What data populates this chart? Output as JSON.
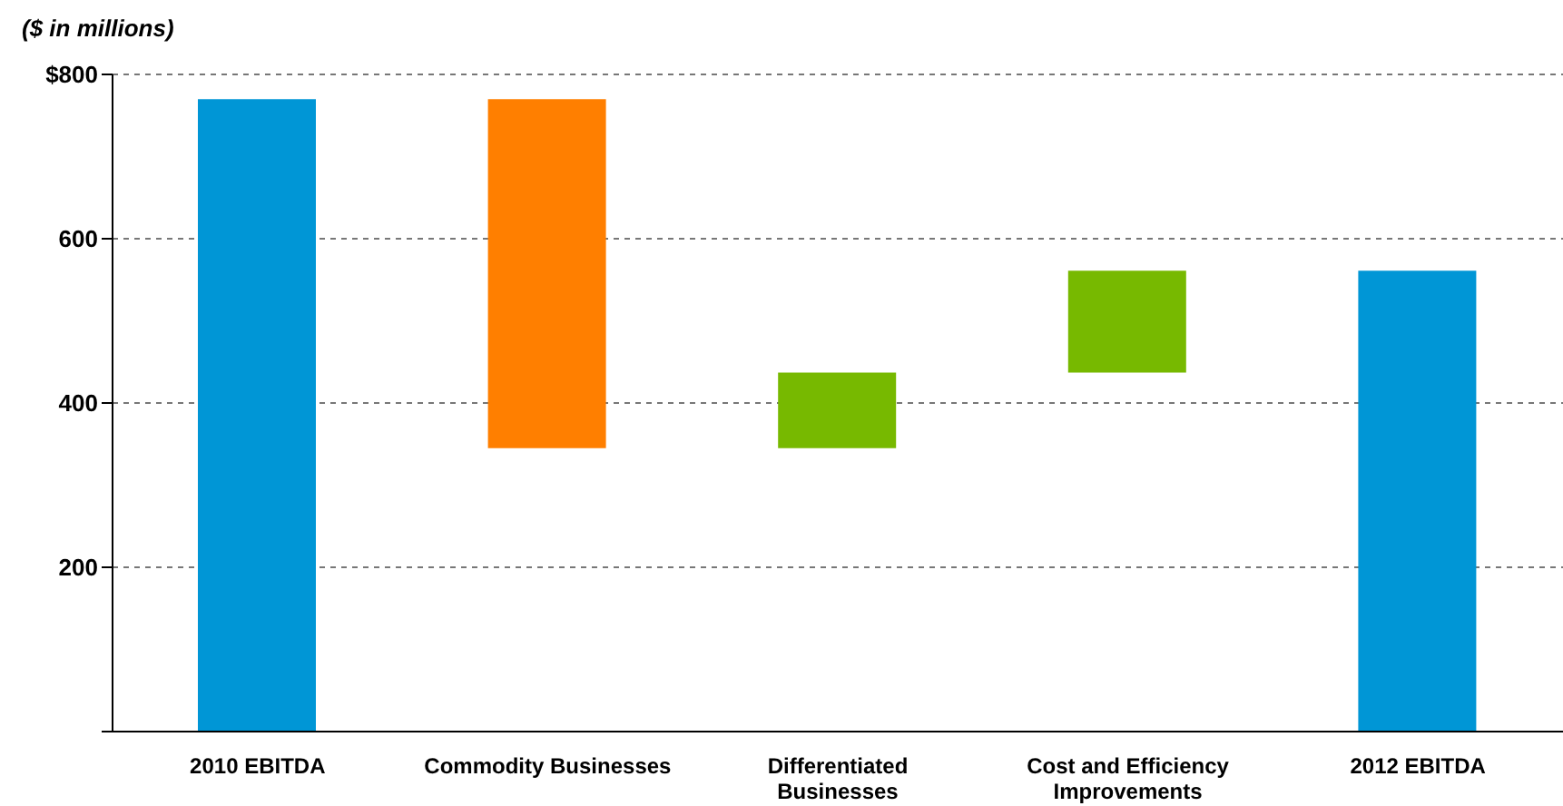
{
  "chart_data": {
    "type": "bar",
    "ylabel": "($ in millions)",
    "categories": [
      "2010 EBITDA",
      "Commodity Businesses",
      "Differentiated Businesses",
      "Cost and Efficiency Improvements",
      "2012 EBITDA"
    ],
    "base": [
      0,
      770,
      345,
      437,
      0
    ],
    "values": [
      770,
      -425,
      92,
      124,
      561
    ],
    "colors": [
      "#0096d6",
      "#ff7f00",
      "#77b900",
      "#77b900",
      "#0096d6"
    ],
    "ylim": [
      0,
      800
    ],
    "yticks": [
      {
        "value": 0,
        "label": null
      },
      200,
      400,
      600,
      {
        "value": 800,
        "label": "$800"
      }
    ],
    "grid": "y"
  }
}
